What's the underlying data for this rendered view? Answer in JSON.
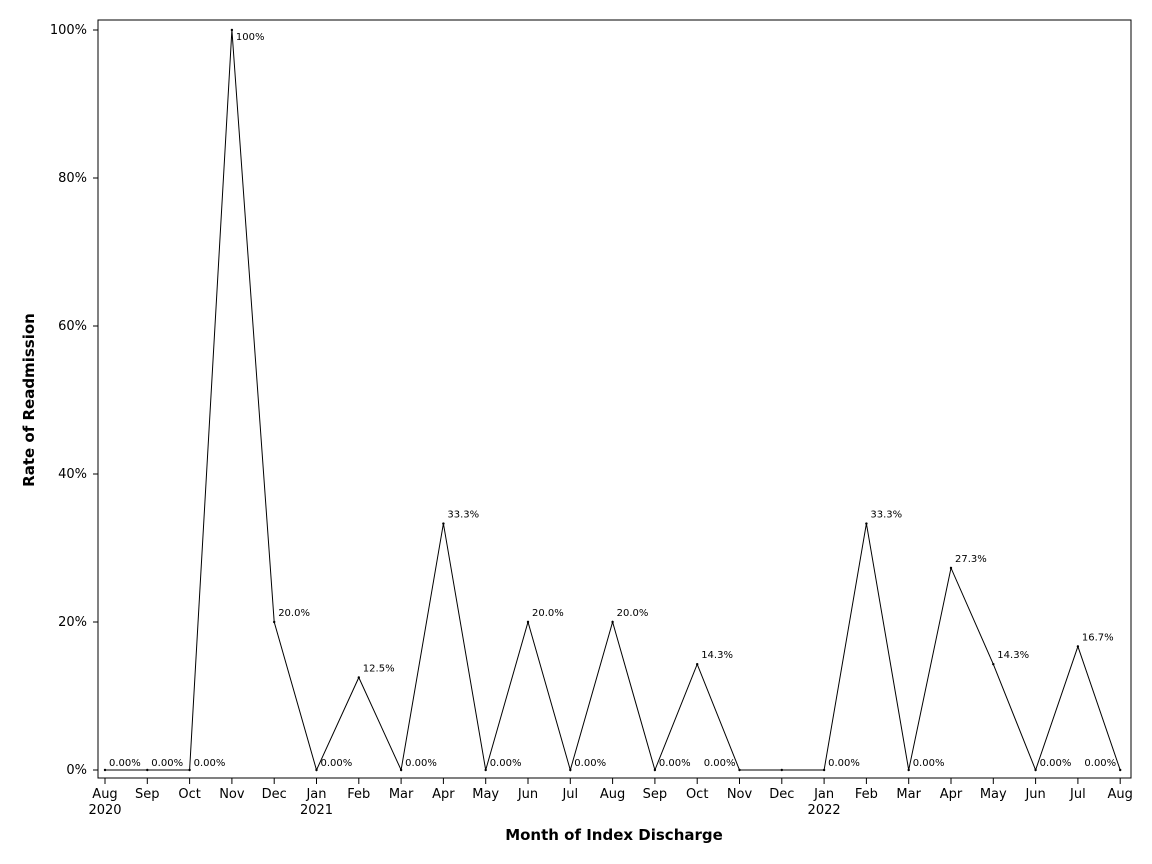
{
  "chart_data": {
    "type": "line",
    "title": "",
    "xlabel": "Month of Index Discharge",
    "ylabel": "Rate of Readmission",
    "ylim": [
      0,
      100
    ],
    "y_ticks": [
      0,
      20,
      40,
      60,
      80,
      100
    ],
    "y_tick_labels": [
      "0%",
      "20%",
      "40%",
      "60%",
      "80%",
      "100%"
    ],
    "grid": false,
    "legend": "none",
    "x_tick_labels": [
      "Aug",
      "Sep",
      "Oct",
      "Nov",
      "Dec",
      "Jan",
      "Feb",
      "Mar",
      "Apr",
      "May",
      "Jun",
      "Jul",
      "Aug",
      "Sep",
      "Oct",
      "Nov",
      "Dec",
      "Jan",
      "Feb",
      "Mar",
      "Apr",
      "May",
      "Jun",
      "Jul",
      "Aug"
    ],
    "x_year_labels": [
      {
        "index": 0,
        "label": "2020"
      },
      {
        "index": 5,
        "label": "2021"
      },
      {
        "index": 17,
        "label": "2022"
      }
    ],
    "series": [
      {
        "values": [
          0,
          0,
          0,
          100,
          20.0,
          0,
          12.5,
          0,
          33.3,
          0,
          20.0,
          0,
          20.0,
          0,
          14.3,
          0,
          0,
          0,
          33.3,
          0,
          27.3,
          14.3,
          0,
          16.7,
          0
        ],
        "labels": [
          "0.00%",
          "0.00%",
          "0.00%",
          "100%",
          "20.0%",
          "0.00%",
          "12.5%",
          "0.00%",
          "33.3%",
          "0.00%",
          "20.0%",
          "0.00%",
          "20.0%",
          "0.00%",
          "14.3%",
          "0.00%",
          "",
          "0.00%",
          "33.3%",
          "0.00%",
          "27.3%",
          "14.3%",
          "0.00%",
          "16.7%",
          "0.00%"
        ]
      }
    ]
  }
}
